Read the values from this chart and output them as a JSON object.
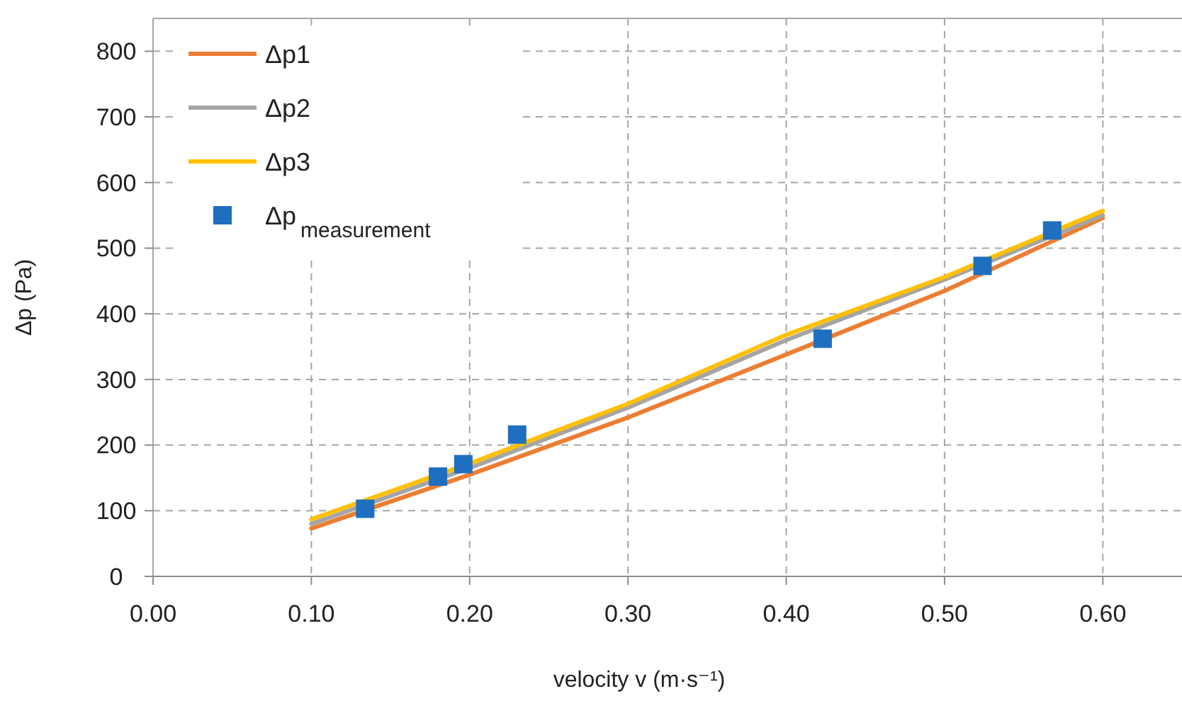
{
  "chart_data": {
    "type": "line",
    "xlabel": "velocity v (m·s⁻¹)",
    "ylabel": "Δp (Pa)",
    "xlim": [
      0,
      0.65
    ],
    "xticks": [
      {
        "value": 0,
        "label": "0.00"
      },
      {
        "value": 0.1,
        "label": "0.10"
      },
      {
        "value": 0.2,
        "label": "0.20"
      },
      {
        "value": 0.3,
        "label": "0.30"
      },
      {
        "value": 0.4,
        "label": "0.40"
      },
      {
        "value": 0.5,
        "label": "0.50"
      },
      {
        "value": 0.6,
        "label": "0.60"
      }
    ],
    "ylim": [
      0,
      850
    ],
    "yticks": [
      0,
      100,
      200,
      300,
      400,
      500,
      600,
      700,
      800
    ],
    "grid": true,
    "legend": "top left",
    "line_style": "solid",
    "series": [
      {
        "name": "Δp1",
        "color": "#ed7d31",
        "x": [
          0.1,
          0.2,
          0.3,
          0.4,
          0.5,
          0.6
        ],
        "values": [
          73,
          155,
          242,
          338,
          435,
          546
        ]
      },
      {
        "name": "Δp2",
        "color": "#a5a5a5",
        "x": [
          0.1,
          0.2,
          0.3,
          0.4,
          0.5,
          0.6
        ],
        "values": [
          80,
          165,
          257,
          360,
          452,
          550
        ]
      },
      {
        "name": "Δp3",
        "color": "#ffc000",
        "x": [
          0.1,
          0.2,
          0.3,
          0.4,
          0.5,
          0.6
        ],
        "values": [
          87,
          172,
          263,
          368,
          456,
          557
        ]
      },
      {
        "name": "Δp$_{measurement}$",
        "type": "scatter",
        "marker": "square",
        "color": "#1f6fc0",
        "x": [
          0.134,
          0.18,
          0.196,
          0.23,
          0.423,
          0.524,
          0.568
        ],
        "values": [
          103,
          152,
          171,
          216,
          362,
          473,
          527
        ]
      }
    ]
  }
}
